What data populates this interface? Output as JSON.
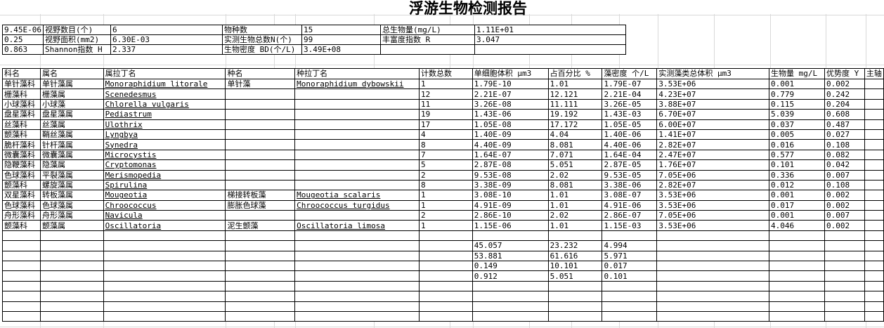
{
  "title": "浮游生物检测报告",
  "summary_table": {
    "rows": [
      [
        "9.45E-06",
        "视野数目(个)",
        "6",
        "物种数",
        "15",
        "总生物量(mg/L)",
        "1.11E+01"
      ],
      [
        "0.25",
        "视野面积(mm2)",
        "6.30E-03",
        "实测生物总数N(个)",
        "99",
        "丰富度指数 R",
        "3.047"
      ],
      [
        "0.863",
        "Shannon指数 H",
        "2.337",
        "生物密度 BD(个/L)",
        "3.49E+08",
        "",
        ""
      ]
    ]
  },
  "main_table": {
    "headers": [
      "科名",
      "属名",
      "属拉丁名",
      "种名",
      "种拉丁名",
      "计数总数",
      "单细胞体积 μm3",
      "占百分比 %",
      "藻密度 个/L",
      "实测藻类总体积 μm3",
      "生物量 mg/L",
      "优势度 Y",
      "主轴"
    ],
    "rows": [
      [
        "单针藻科",
        "单针藻属",
        "Monoraphidium litorale",
        "单针藻",
        "Monoraphidium dybowskii",
        "1",
        "1.79E-10",
        "1.01",
        "1.79E-07",
        "3.53E+06",
        "0.001",
        "0.002",
        ""
      ],
      [
        "栅藻科",
        "栅藻属",
        "Scenedesmus",
        "",
        "",
        "12",
        "2.21E-07",
        "12.121",
        "2.21E-04",
        "4.23E+07",
        "0.779",
        "0.242",
        ""
      ],
      [
        "小球藻科",
        "小球藻",
        "Chlorella vulgaris",
        "",
        "",
        "11",
        "3.26E-08",
        "11.111",
        "3.26E-05",
        "3.88E+07",
        "0.115",
        "0.204",
        ""
      ],
      [
        "盘星藻科",
        "盘星藻属",
        "Pediastrum",
        "",
        "",
        "19",
        "1.43E-06",
        "19.192",
        "1.43E-03",
        "6.70E+07",
        "5.039",
        "0.608",
        ""
      ],
      [
        "丝藻科",
        "丝藻属",
        "Ulothrix",
        "",
        "",
        "17",
        "1.05E-08",
        "17.172",
        "1.05E-05",
        "6.00E+07",
        "0.037",
        "0.487",
        ""
      ],
      [
        "颤藻科",
        "鞘丝藻属",
        "Lyngbya",
        "",
        "",
        "4",
        "1.40E-09",
        "4.04",
        "1.40E-06",
        "1.41E+07",
        "0.005",
        "0.027",
        ""
      ],
      [
        "脆杆藻科",
        "针杆藻属",
        "Synedra",
        "",
        "",
        "8",
        "4.40E-09",
        "8.081",
        "4.40E-06",
        "2.82E+07",
        "0.016",
        "0.108",
        ""
      ],
      [
        "微囊藻科",
        "微囊藻属",
        "Microcystis",
        "",
        "",
        "7",
        "1.64E-07",
        "7.071",
        "1.64E-04",
        "2.47E+07",
        "0.577",
        "0.082",
        ""
      ],
      [
        "隐鞭藻科",
        "隐藻属",
        "Cryptomonas",
        "",
        "",
        "5",
        "2.87E-08",
        "5.051",
        "2.87E-05",
        "1.76E+07",
        "0.101",
        "0.042",
        ""
      ],
      [
        "色球藻科",
        "平裂藻属",
        "Merismopedia",
        "",
        "",
        "2",
        "9.53E-08",
        "2.02",
        "9.53E-05",
        "7.05E+06",
        "0.336",
        "0.007",
        ""
      ],
      [
        "颤藻科",
        "螺旋藻属",
        "Spirulina",
        "",
        "",
        "8",
        "3.38E-09",
        "8.081",
        "3.38E-06",
        "2.82E+07",
        "0.012",
        "0.108",
        ""
      ],
      [
        "双星藻科",
        "转板藻属",
        "Mougeotia",
        "梯接转板藻",
        "Mougeotia scalaris",
        "1",
        "3.08E-10",
        "1.01",
        "3.08E-07",
        "3.53E+06",
        "0.001",
        "0.002",
        ""
      ],
      [
        "色球藻科",
        "色球藻属",
        "Chroococcus",
        "膨胀色球藻",
        "Chroococcus turgidus",
        "1",
        "4.91E-09",
        "1.01",
        "4.91E-06",
        "3.53E+06",
        "0.017",
        "0.002",
        ""
      ],
      [
        "舟形藻科",
        "舟形藻属",
        "Navicula",
        "",
        "",
        "2",
        "2.86E-10",
        "2.02",
        "2.86E-07",
        "7.05E+06",
        "0.001",
        "0.007",
        ""
      ],
      [
        "颤藻科",
        "颤藻属",
        "Oscillatoria",
        "泥生颤藻",
        "Oscillatoria limosa",
        "1",
        "1.15E-06",
        "1.01",
        "1.15E-03",
        "3.53E+06",
        "4.046",
        "0.002",
        ""
      ],
      [
        "",
        "",
        "",
        "",
        "",
        "",
        "",
        "",
        "",
        "",
        "",
        "",
        ""
      ],
      [
        "",
        "",
        "",
        "",
        "",
        "",
        "45.057",
        "23.232",
        "4.994",
        "",
        "",
        "",
        ""
      ],
      [
        "",
        "",
        "",
        "",
        "",
        "",
        "53.881",
        "61.616",
        "5.971",
        "",
        "",
        "",
        ""
      ],
      [
        "",
        "",
        "",
        "",
        "",
        "",
        "0.149",
        "10.101",
        "0.017",
        "",
        "",
        "",
        ""
      ],
      [
        "",
        "",
        "",
        "",
        "",
        "",
        "0.912",
        "5.051",
        "0.101",
        "",
        "",
        "",
        ""
      ],
      [
        "",
        "",
        "",
        "",
        "",
        "",
        "",
        "",
        "",
        "",
        "",
        "",
        ""
      ],
      [
        "",
        "",
        "",
        "",
        "",
        "",
        "",
        "",
        "",
        "",
        "",
        "",
        ""
      ],
      [
        "",
        "",
        "",
        "",
        "",
        "",
        "",
        "",
        "",
        "",
        "",
        "",
        ""
      ],
      [
        "",
        "",
        "",
        "",
        "",
        "",
        "",
        "",
        "",
        "",
        "",
        "",
        ""
      ]
    ]
  }
}
